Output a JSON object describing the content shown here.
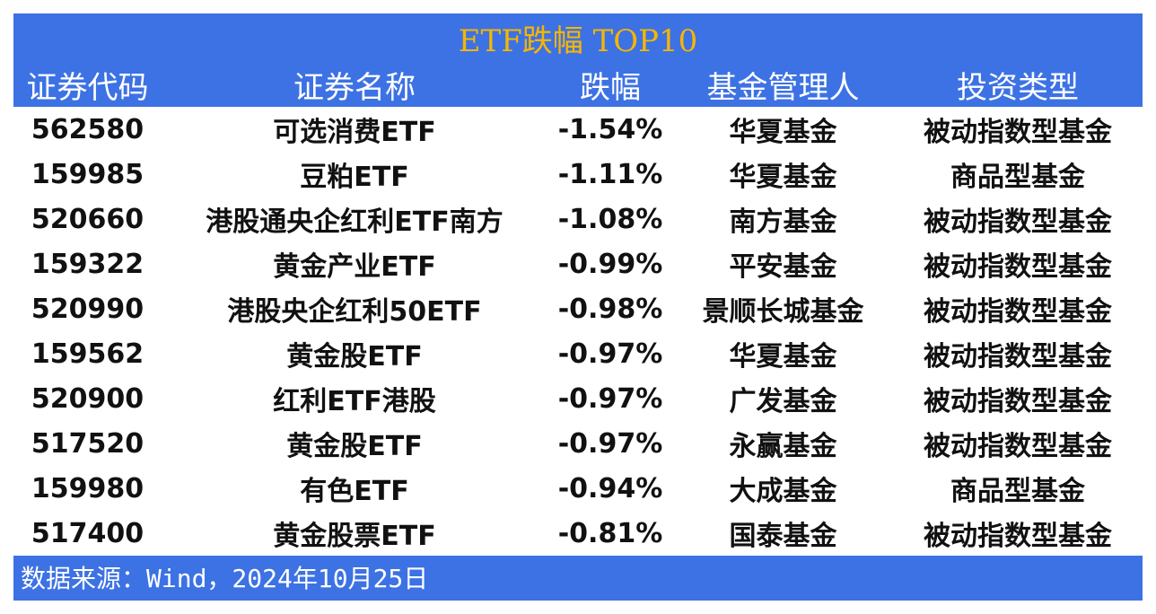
{
  "table": {
    "title": "ETF跌幅 TOP10",
    "headers": [
      "证券代码",
      "证券名称",
      "跌幅",
      "基金管理人",
      "投资类型"
    ],
    "rows": [
      [
        "562580",
        "可选消费ETF",
        "-1.54%",
        "华夏基金",
        "被动指数型基金"
      ],
      [
        "159985",
        "豆粕ETF",
        "-1.11%",
        "华夏基金",
        "商品型基金"
      ],
      [
        "520660",
        "港股通央企红利ETF南方",
        "-1.08%",
        "南方基金",
        "被动指数型基金"
      ],
      [
        "159322",
        "黄金产业ETF",
        "-0.99%",
        "平安基金",
        "被动指数型基金"
      ],
      [
        "520990",
        "港股央企红利50ETF",
        "-0.98%",
        "景顺长城基金",
        "被动指数型基金"
      ],
      [
        "159562",
        "黄金股ETF",
        "-0.97%",
        "华夏基金",
        "被动指数型基金"
      ],
      [
        "520900",
        "红利ETF港股",
        "-0.97%",
        "广发基金",
        "被动指数型基金"
      ],
      [
        "517520",
        "黄金股ETF",
        "-0.97%",
        "永赢基金",
        "被动指数型基金"
      ],
      [
        "159980",
        "有色ETF",
        "-0.94%",
        "大成基金",
        "商品型基金"
      ],
      [
        "517400",
        "黄金股票ETF",
        "-0.81%",
        "国泰基金",
        "被动指数型基金"
      ]
    ],
    "footer": "数据来源：Wind，2024年10月25日"
  }
}
